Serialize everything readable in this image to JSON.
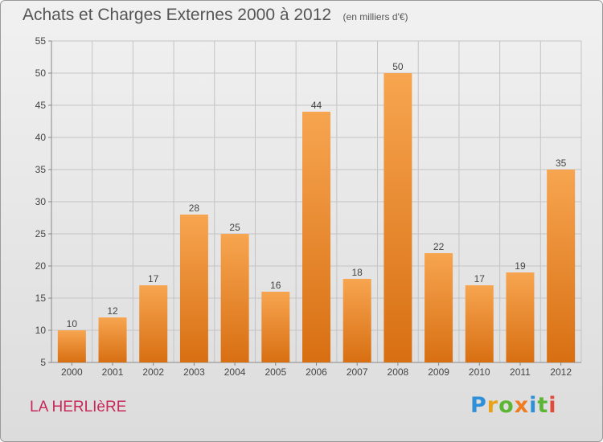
{
  "title": "Achats et Charges Externes 2000 à 2012",
  "units_label": "(en milliers d'€)",
  "commune": "LA HERLIèRE",
  "logo_text": [
    "P",
    "r",
    "o",
    "x",
    "i",
    "t",
    "i"
  ],
  "colors": {
    "bar_top": "#f7a550",
    "bar_bottom": "#d86f12",
    "commune_text": "#c8285a",
    "background": "#e6e6e6"
  },
  "chart_data": {
    "type": "bar",
    "title": "Achats et Charges Externes 2000 à 2012",
    "subtitle": "(en milliers d'€)",
    "xlabel": "",
    "ylabel": "",
    "categories": [
      "2000",
      "2001",
      "2002",
      "2003",
      "2004",
      "2005",
      "2006",
      "2007",
      "2008",
      "2009",
      "2010",
      "2011",
      "2012"
    ],
    "values": [
      10,
      12,
      17,
      28,
      25,
      16,
      44,
      18,
      50,
      22,
      17,
      19,
      35
    ],
    "ylim": [
      5,
      55
    ],
    "yticks": [
      5,
      10,
      15,
      20,
      25,
      30,
      35,
      40,
      45,
      50,
      55
    ],
    "grid": true,
    "data_labels": true
  }
}
